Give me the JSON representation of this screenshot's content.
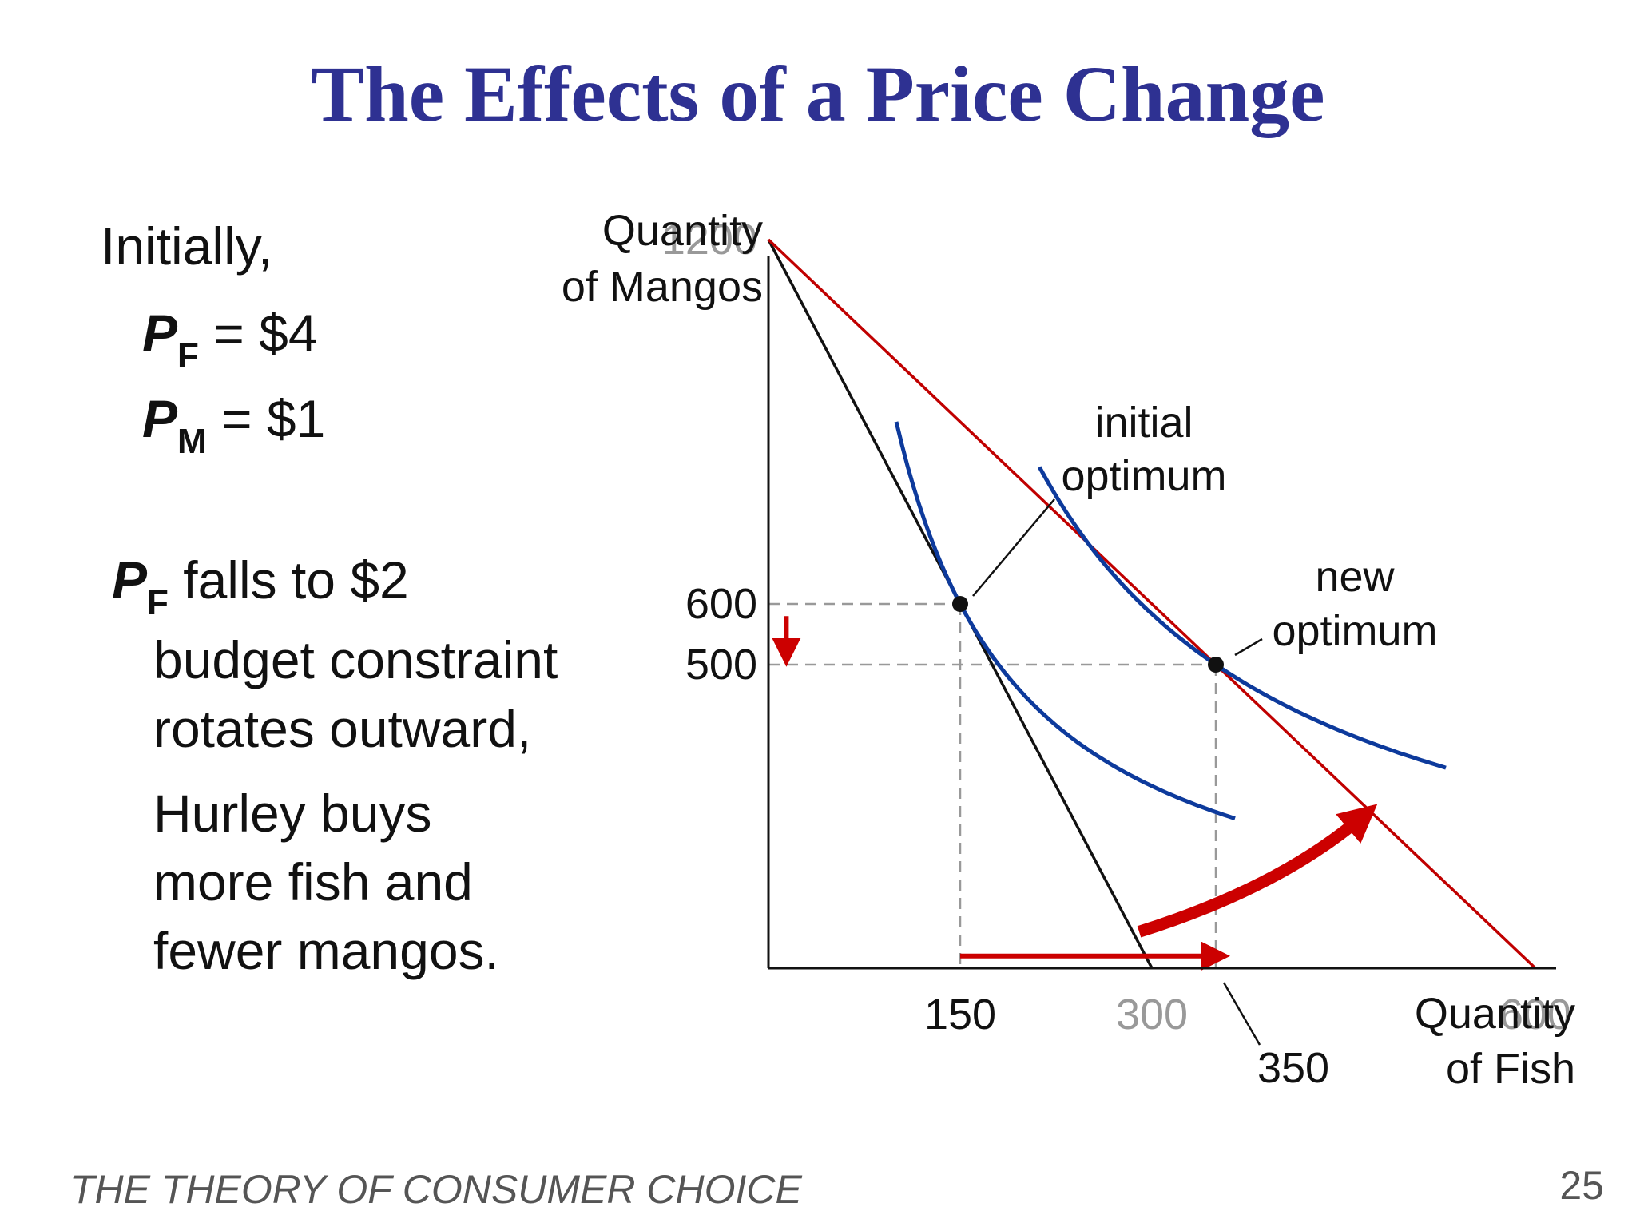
{
  "slide": {
    "title": "The Effects of a Price Change",
    "footer": "THE THEORY OF CONSUMER CHOICE",
    "page_number": "25"
  },
  "text_panel": {
    "initially": "Initially,",
    "pf_symbol": "P",
    "pf_sub": "F",
    "pf_value": " = $4",
    "pm_symbol": "P",
    "pm_sub": "M",
    "pm_value": " = $1",
    "fall_symbol": "P",
    "fall_sub": "F",
    "fall_text": " falls to $2",
    "lines": [
      "budget constraint",
      "rotates outward,",
      "Hurley buys",
      "more fish and",
      "fewer mangos."
    ]
  },
  "colors": {
    "title": "#2e3192",
    "budget_initial": "#111111",
    "budget_new": "#c00000",
    "indifference": "#0d3a9c",
    "arrow": "#cc0000",
    "gray_label": "#999999",
    "dashed": "#999999"
  },
  "chart_data": {
    "type": "line",
    "xlabel": [
      "Quantity",
      "of Fish"
    ],
    "ylabel": [
      "Quantity",
      "of Mangos"
    ],
    "xlim": [
      0,
      700
    ],
    "ylim": [
      0,
      1350
    ],
    "x_ticks": [
      {
        "value": 150,
        "label": "150",
        "style": "black"
      },
      {
        "value": 300,
        "label": "300",
        "style": "gray"
      },
      {
        "value": 600,
        "label": "600",
        "style": "gray"
      }
    ],
    "x_callout": {
      "value": 350,
      "label": "350"
    },
    "y_ticks": [
      {
        "value": 1200,
        "label": "1200",
        "style": "gray"
      },
      {
        "value": 600,
        "label": "600",
        "style": "black"
      },
      {
        "value": 500,
        "label": "500",
        "style": "black"
      }
    ],
    "budget_lines": [
      {
        "id": "initial",
        "points": [
          [
            0,
            1200
          ],
          [
            300,
            0
          ]
        ]
      },
      {
        "id": "new",
        "points": [
          [
            0,
            1200
          ],
          [
            600,
            0
          ]
        ]
      }
    ],
    "indifference_curves": [
      {
        "id": "IC1",
        "k": 90000,
        "x_range": [
          100,
          365
        ]
      },
      {
        "id": "IC2",
        "k": 175000,
        "x_range": [
          212,
          530
        ]
      }
    ],
    "points": [
      {
        "id": "initial-optimum",
        "x": 150,
        "y": 600
      },
      {
        "id": "new-optimum",
        "x": 350,
        "y": 500
      }
    ],
    "annotations": [
      {
        "id": "initial-optimum-label",
        "lines": [
          "initial",
          "optimum"
        ],
        "target": [
          150,
          600
        ]
      },
      {
        "id": "new-optimum-label",
        "lines": [
          "new",
          "optimum"
        ],
        "target": [
          350,
          500
        ]
      }
    ],
    "arrows": [
      {
        "id": "fish-increase",
        "from": [
          150,
          20
        ],
        "to": [
          350,
          20
        ]
      },
      {
        "id": "mango-decrease",
        "from": [
          14,
          580
        ],
        "to": [
          14,
          520
        ]
      },
      {
        "id": "rotation",
        "from": [
          290,
          60
        ],
        "to": [
          465,
          250
        ]
      }
    ]
  }
}
